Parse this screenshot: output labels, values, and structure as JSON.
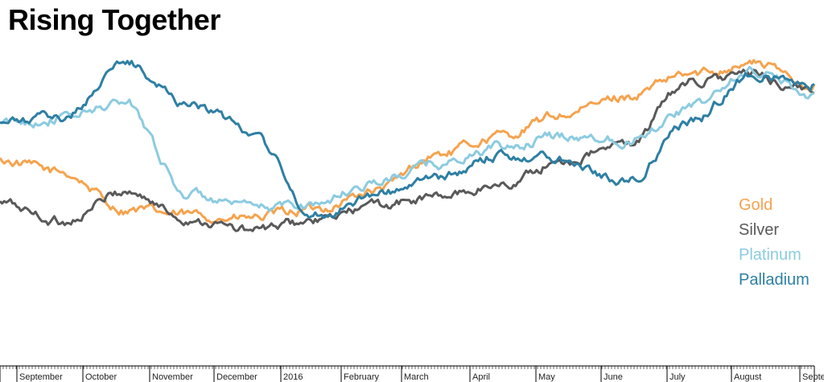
{
  "chart_data": {
    "type": "line",
    "title": "Rising Together",
    "xlabel": "",
    "ylabel": "",
    "x_axis_labels": [
      "September",
      "October",
      "November",
      "December",
      "2016",
      "February",
      "March",
      "April",
      "May",
      "June",
      "July",
      "August",
      "Septe"
    ],
    "x": [
      "2015-08",
      "2015-09",
      "2015-10",
      "2015-11",
      "2015-12",
      "2016-01",
      "2016-02",
      "2016-03",
      "2016-04",
      "2016-05",
      "2016-06",
      "2016-07",
      "2016-08",
      "2016-09"
    ],
    "y_axis_shown": false,
    "grid": false,
    "legend_placement": "right",
    "series": [
      {
        "name": "Gold",
        "color": "#f5a34e",
        "values": [
          58,
          54,
          42,
          40,
          39,
          42,
          48,
          60,
          66,
          73,
          79,
          86,
          90,
          83
        ]
      },
      {
        "name": "Silver",
        "color": "#595959",
        "values": [
          44,
          38,
          48,
          39,
          35,
          38,
          43,
          46,
          50,
          58,
          63,
          84,
          86,
          80
        ]
      },
      {
        "name": "Platinum",
        "color": "#8ccbe0",
        "values": [
          70,
          72,
          77,
          47,
          42,
          44,
          51,
          57,
          62,
          66,
          65,
          75,
          87,
          80
        ]
      },
      {
        "name": "Palladium",
        "color": "#2e7fa3",
        "values": [
          70,
          72,
          90,
          77,
          68,
          40,
          47,
          52,
          60,
          59,
          51,
          70,
          86,
          83
        ]
      }
    ]
  }
}
